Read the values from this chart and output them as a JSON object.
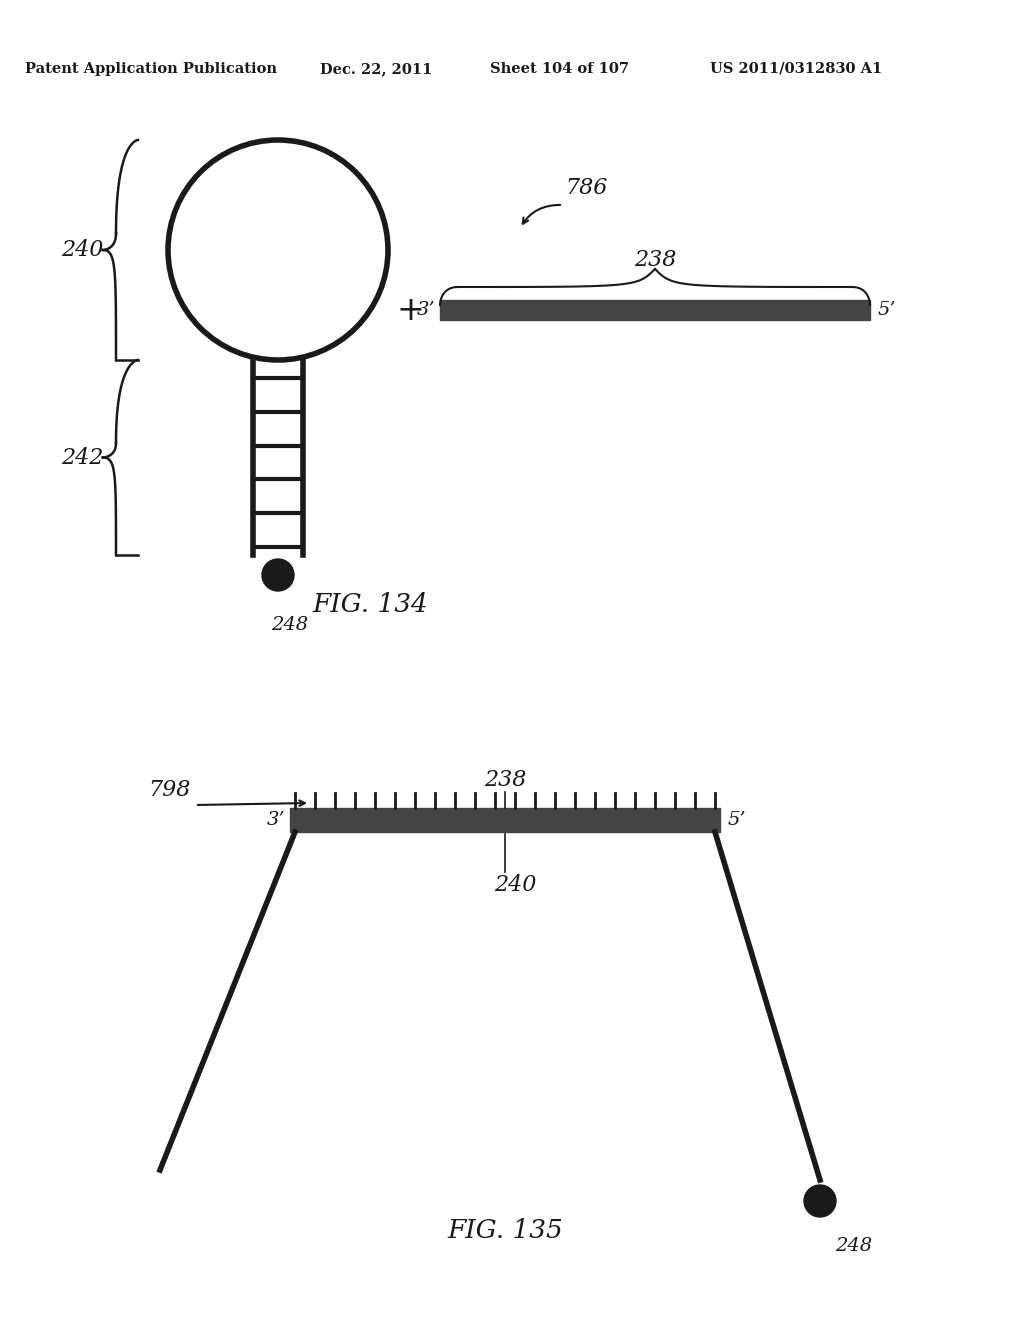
{
  "bg_color": "#ffffff",
  "line_color": "#1a1a1a",
  "header_text": "Patent Application Publication",
  "header_date": "Dec. 22, 2011",
  "header_sheet": "Sheet 104 of 107",
  "header_patent": "US 2011/0312830 A1",
  "fig134_label": "FIG. 134",
  "fig135_label": "FIG. 135",
  "label_786": "786",
  "label_238_top": "238",
  "label_240_top": "240",
  "label_242": "242",
  "label_248_top": "248",
  "label_798": "798",
  "label_238_bottom": "238",
  "label_240_bottom": "240",
  "label_248_bottom": "248",
  "label_3prime_top": "3’",
  "label_5prime_top": "5’",
  "label_3prime_bottom": "3’",
  "label_5prime_bottom": "5’"
}
